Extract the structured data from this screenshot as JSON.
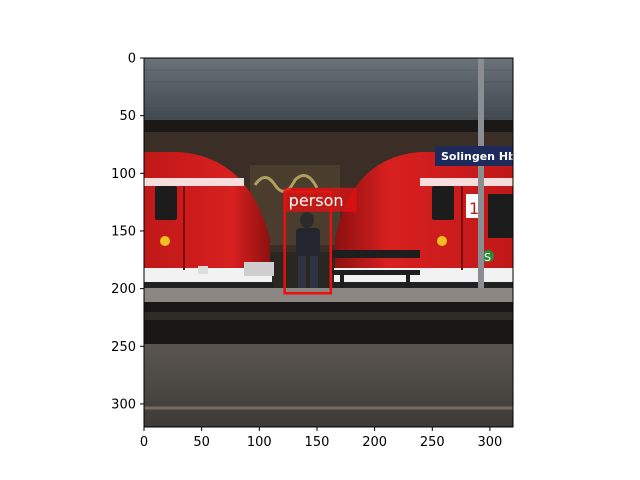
{
  "image_axes": {
    "x_ticks": [
      "0",
      "50",
      "100",
      "150",
      "200",
      "250",
      "300"
    ],
    "y_ticks": [
      "0",
      "50",
      "100",
      "150",
      "200",
      "250",
      "300"
    ]
  },
  "scene": {
    "station_sign": "Solingen Hbf",
    "car_number": "1",
    "s_bahn_mark": "S"
  },
  "detections": [
    {
      "label": "person",
      "box_image_coords": [
        122,
        116,
        162,
        204
      ],
      "color": "#e81010"
    }
  ]
}
